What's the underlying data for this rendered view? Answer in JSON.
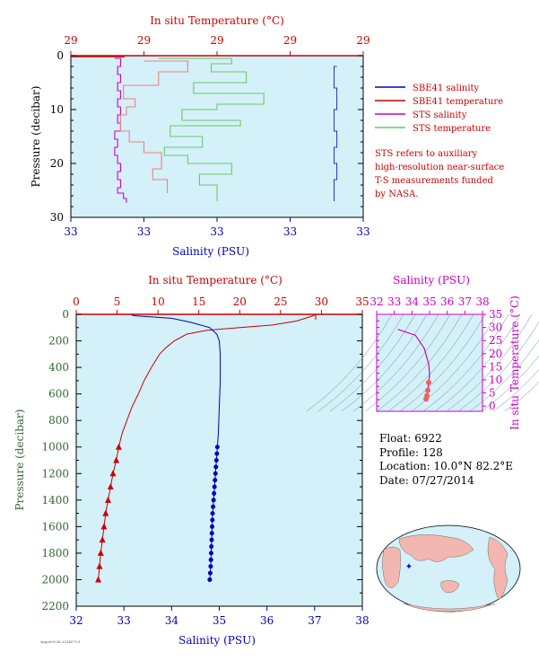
{
  "colors": {
    "panel_bg": "#d4f0f9",
    "red": "#cc0000",
    "blue": "#0000bb",
    "magenta": "#cc00cc",
    "green": "#66cc66",
    "salmon": "#f08080",
    "dark_green_label": "#336633"
  },
  "float_info": {
    "float": "Float:  6922",
    "profile": "Profile:  128",
    "location": "Location:  10.0°N  82.2°E",
    "date": "Date:  07/27/2014"
  },
  "stamp": "Argo6922b 20140729",
  "legend": {
    "items": [
      {
        "label": "SBE41 salinity",
        "color": "#0000bb"
      },
      {
        "label": "SBE41 temperature",
        "color": "#cc0000"
      },
      {
        "label": "STS salinity",
        "color": "#cc00cc"
      },
      {
        "label": "STS temperature",
        "color": "#66cc66"
      }
    ],
    "note": [
      "STS refers to auxiliary",
      "high-resolution near-surface",
      "T-S measurements funded",
      "by NASA."
    ]
  },
  "chart_data": [
    {
      "id": "near_surface",
      "type": "line",
      "title": "",
      "top_axis_label": "In situ Temperature (°C)",
      "top_ticks": [
        "29",
        "29",
        "29",
        "29",
        "29"
      ],
      "xlabel": "Salinity (PSU)",
      "bottom_ticks": [
        "33",
        "33",
        "33",
        "33",
        "33"
      ],
      "ylabel": "Pressure (decibar)",
      "y_ticks": [
        0,
        10,
        20,
        30
      ],
      "ylim": [
        0,
        30
      ],
      "grid": false,
      "series": [
        {
          "name": "STS salinity",
          "x_frac": [
            0.15,
            0.17,
            0.16,
            0.17,
            0.16,
            0.17,
            0.16,
            0.17,
            0.16,
            0.17,
            0.15,
            0.16,
            0.15,
            0.16,
            0.17,
            0.16,
            0.17,
            0.16,
            0.18,
            0.19
          ],
          "y": [
            0.5,
            2,
            3.5,
            5,
            6.5,
            8,
            9.5,
            11,
            12.5,
            14,
            15.5,
            17,
            18.5,
            20,
            21.5,
            23,
            24.5,
            25.5,
            26.5,
            27.3
          ]
        },
        {
          "name": "STS temperature",
          "x_frac": [
            0.3,
            0.55,
            0.48,
            0.6,
            0.42,
            0.66,
            0.5,
            0.38,
            0.58,
            0.34,
            0.45,
            0.32,
            0.4,
            0.55,
            0.44,
            0.5
          ],
          "y": [
            0.5,
            1.5,
            3,
            5,
            7,
            9,
            10,
            12,
            13,
            15,
            17,
            18.5,
            20,
            22,
            24,
            27
          ]
        },
        {
          "name": "SBE41 temperature",
          "x_frac": [
            0.25,
            0.4,
            0.3,
            0.18,
            0.22,
            0.19,
            0.17,
            0.2,
            0.25,
            0.31,
            0.28,
            0.33
          ],
          "y": [
            1,
            3,
            5.5,
            8,
            9.5,
            11,
            14,
            16,
            18,
            21,
            23,
            25.5
          ]
        },
        {
          "name": "SBE41 salinity",
          "x_frac": [
            0.91,
            0.9,
            0.91,
            0.9,
            0.91,
            0.9,
            0.91,
            0.9
          ],
          "y": [
            2,
            6,
            10,
            14,
            17,
            20,
            23,
            27
          ]
        }
      ]
    },
    {
      "id": "full_profile",
      "type": "line",
      "title": "",
      "top_axis_label": "In situ Temperature (°C)",
      "top_ticks": [
        0,
        5,
        10,
        15,
        20,
        25,
        30,
        35
      ],
      "xlabel": "Salinity (PSU)",
      "xlim": [
        32,
        38
      ],
      "bottom_ticks": [
        32,
        33,
        34,
        35,
        36,
        37,
        38
      ],
      "ylabel": "Pressure (decibar)",
      "ylim": [
        0,
        2200
      ],
      "y_ticks": [
        0,
        200,
        400,
        600,
        800,
        1000,
        1200,
        1400,
        1600,
        1800,
        2000,
        2200
      ],
      "grid": false,
      "series": [
        {
          "name": "SBE41 temperature",
          "x": [
            29.3,
            29.0,
            27.0,
            24.0,
            20.0,
            16.0,
            13.5,
            12.0,
            11.0,
            10.2,
            9.2,
            8.3,
            7.6,
            6.8,
            6.2,
            5.6,
            5.2,
            4.9,
            4.5,
            4.2,
            3.9,
            3.6,
            3.4,
            3.2,
            3.0,
            2.85,
            2.7
          ],
          "y": [
            0,
            10,
            50,
            80,
            100,
            120,
            150,
            200,
            250,
            300,
            400,
            500,
            600,
            700,
            800,
            900,
            1000,
            1100,
            1200,
            1300,
            1400,
            1500,
            1600,
            1700,
            1800,
            1900,
            2000
          ]
        },
        {
          "name": "SBE41 salinity",
          "x": [
            33.15,
            33.2,
            34.0,
            34.4,
            34.8,
            34.95,
            35.0,
            35.02,
            35.02,
            35.0,
            34.98,
            34.96,
            34.94,
            34.92,
            34.9,
            34.88,
            34.86,
            34.84,
            34.82,
            34.8
          ],
          "y": [
            0,
            10,
            30,
            60,
            100,
            150,
            200,
            300,
            500,
            700,
            900,
            1000,
            1100,
            1200,
            1300,
            1400,
            1500,
            1700,
            1900,
            2000
          ]
        },
        {
          "name": "STS",
          "x": [
            33.15,
            33.2
          ],
          "y": [
            0,
            20
          ]
        }
      ],
      "marker_start_pressure": 1000
    },
    {
      "id": "ts_diagram",
      "type": "line",
      "title": "",
      "top_axis_label": "Salinity (PSU)",
      "top_ticks": [
        32,
        33,
        34,
        35,
        36,
        37,
        38
      ],
      "xlim": [
        32,
        38
      ],
      "right_axis_label": "In situ Temperature (°C)",
      "right_ticks": [
        0,
        5,
        10,
        15,
        20,
        25,
        30,
        35
      ],
      "ylim": [
        -2,
        35
      ],
      "series": [
        {
          "name": "T-S",
          "x": [
            33.2,
            34.2,
            34.7,
            34.95,
            35.0,
            34.95,
            34.9,
            34.85,
            34.8
          ],
          "y": [
            29.3,
            27,
            22,
            16,
            12,
            9,
            6,
            4,
            2.7
          ]
        }
      ]
    }
  ]
}
